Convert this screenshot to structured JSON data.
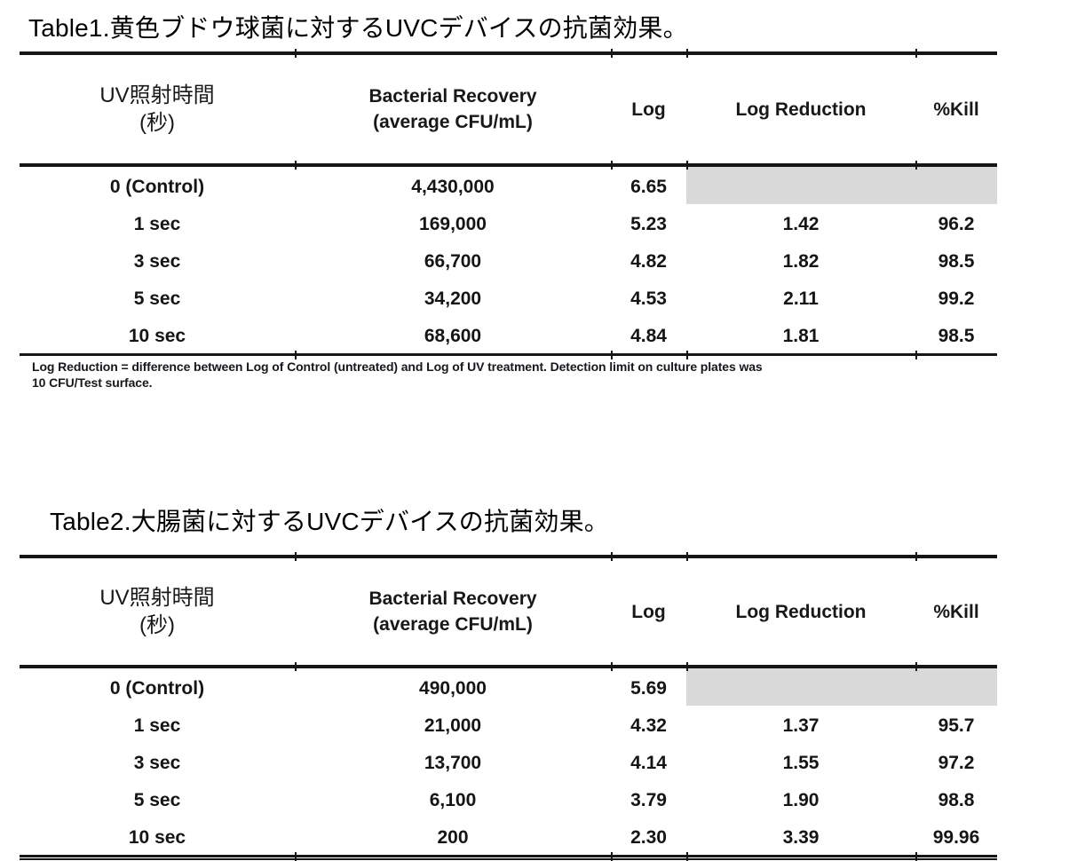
{
  "colors": {
    "background": "#ffffff",
    "text": "#151515",
    "title": "#000000",
    "rule": "#161616",
    "shaded_cell": "#d9d9d9"
  },
  "tables": [
    {
      "title": "Table1.黄色ブドウ球菌に対するUVCデバイスの抗菌効果。",
      "headers": {
        "uv_time_line1": "UV照射時間",
        "uv_time_line2": "(秒)",
        "recovery_line1": "Bacterial Recovery",
        "recovery_line2": "(average CFU/mL)",
        "log": "Log",
        "log_reduction": "Log Reduction",
        "pct_kill": "%Kill"
      },
      "rows": [
        [
          "0 (Control)",
          "4,430,000",
          "6.65",
          "",
          ""
        ],
        [
          "1 sec",
          "169,000",
          "5.23",
          "1.42",
          "96.2"
        ],
        [
          "3 sec",
          "66,700",
          "4.82",
          "1.82",
          "98.5"
        ],
        [
          "5 sec",
          "34,200",
          "4.53",
          "2.11",
          "99.2"
        ],
        [
          "10 sec",
          "68,600",
          "4.84",
          "1.81",
          "98.5"
        ]
      ],
      "footnote_lines": [
        "Log Reduction = difference between Log of Control (untreated) and Log of UV treatment. Detection limit on culture plates was",
        "10 CFU/Test surface."
      ]
    },
    {
      "title": "Table2.大腸菌に対するUVCデバイスの抗菌効果。",
      "headers": {
        "uv_time_line1": "UV照射時間",
        "uv_time_line2": "(秒)",
        "recovery_line1": "Bacterial Recovery",
        "recovery_line2": "(average CFU/mL)",
        "log": "Log",
        "log_reduction": "Log Reduction",
        "pct_kill": "%Kill"
      },
      "rows": [
        [
          "0 (Control)",
          "490,000",
          "5.69",
          "",
          ""
        ],
        [
          "1 sec",
          "21,000",
          "4.32",
          "1.37",
          "95.7"
        ],
        [
          "3 sec",
          "13,700",
          "4.14",
          "1.55",
          "97.2"
        ],
        [
          "5 sec",
          "6,100",
          "3.79",
          "1.90",
          "98.8"
        ],
        [
          "10 sec",
          "200",
          "2.30",
          "3.39",
          "99.96"
        ]
      ],
      "footnote_lines": []
    }
  ]
}
